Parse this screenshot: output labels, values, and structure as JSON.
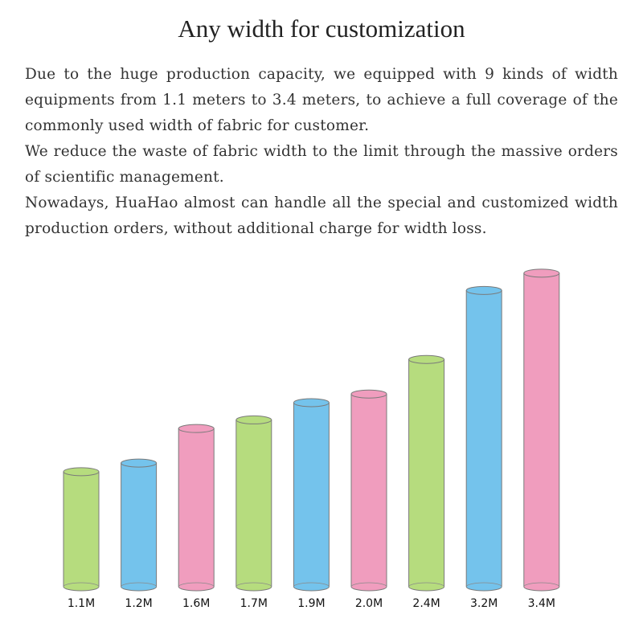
{
  "header": {
    "title": "Any width for customization"
  },
  "paragraphs": [
    "Due to the huge production capacity, we equipped with 9 kinds of width equipments from 1.1 meters to 3.4 meters, to achieve a full coverage of the commonly used width of fabric for customer.",
    "We reduce the waste of fabric width to the limit through the massive orders of scientific management.",
    "Nowadays, HuaHao almost can handle all the special and customized width production orders, without additional charge for width loss."
  ],
  "chart_data": {
    "type": "cylinder",
    "values": [
      1.1,
      1.2,
      1.6,
      1.7,
      1.9,
      2.0,
      2.4,
      3.2,
      3.4
    ],
    "value_labels": [
      "1.1M",
      "1.2M",
      "1.6M",
      "1.7M",
      "1.9M",
      "2.0M",
      "2.4M",
      "3.2M",
      "3.4M"
    ],
    "colors": [
      "#b6dc7e",
      "#74c3ec",
      "#f09dbe",
      "#b6dc7e",
      "#74c3ec",
      "#f09dbe",
      "#b6dc7e",
      "#74c3ec",
      "#f09dbe"
    ]
  }
}
